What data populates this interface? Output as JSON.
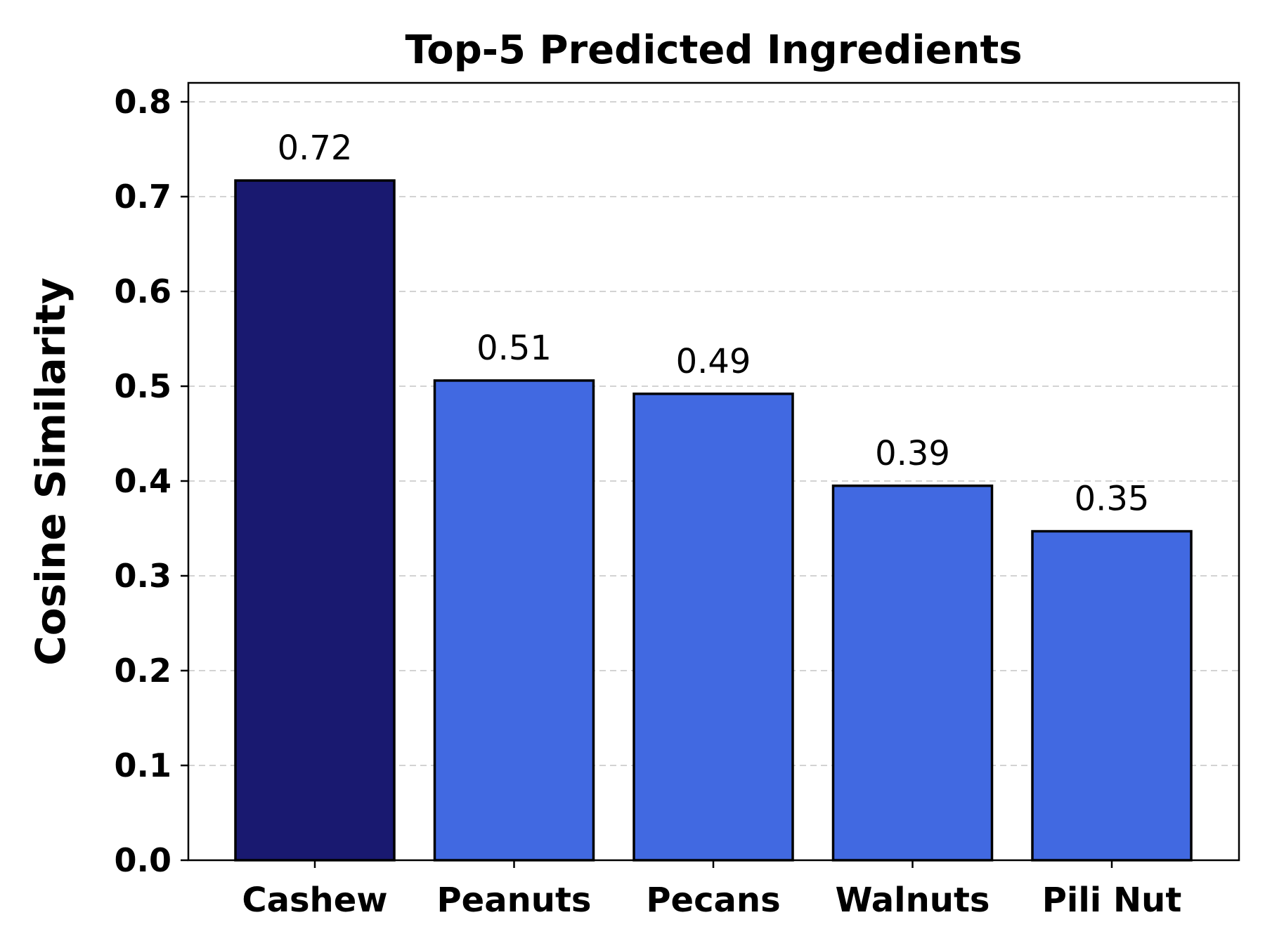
{
  "chart_data": {
    "type": "bar",
    "title": "Top-5 Predicted Ingredients",
    "xlabel": "",
    "ylabel": "Cosine Similarity",
    "categories": [
      "Cashew",
      "Peanuts",
      "Pecans",
      "Walnuts",
      "Pili Nut"
    ],
    "values": [
      0.717,
      0.506,
      0.492,
      0.395,
      0.347
    ],
    "data_labels": [
      "0.72",
      "0.51",
      "0.49",
      "0.39",
      "0.35"
    ],
    "ylim": [
      0,
      0.82
    ],
    "yticks": [
      0.0,
      0.1,
      0.2,
      0.3,
      0.4,
      0.5,
      0.6,
      0.7,
      0.8
    ],
    "ytick_labels": [
      "0.0",
      "0.1",
      "0.2",
      "0.3",
      "0.4",
      "0.5",
      "0.6",
      "0.7",
      "0.8"
    ],
    "grid": "y-dashed",
    "bar_colors": [
      "#191970",
      "#4169e1",
      "#4169e1",
      "#4169e1",
      "#4169e1"
    ],
    "edge_color": "#000000",
    "grid_color": "#d3d3d3"
  }
}
